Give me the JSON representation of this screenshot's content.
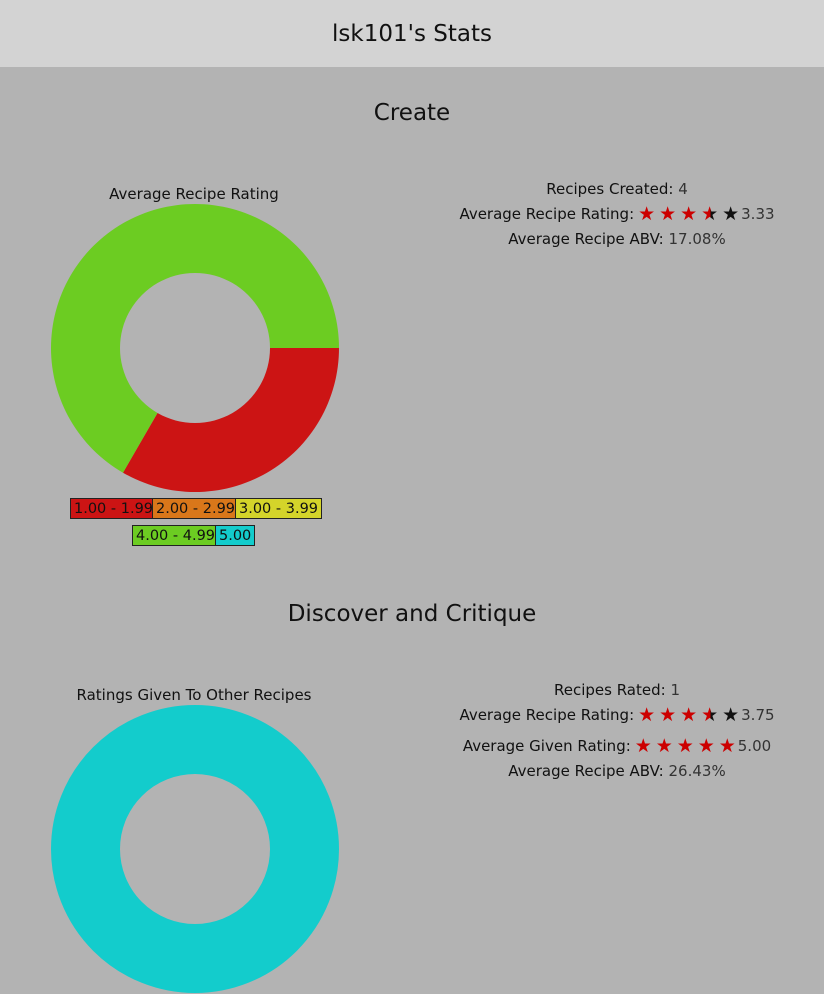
{
  "header": {
    "title": "lsk101's Stats"
  },
  "create": {
    "title": "Create",
    "chart_title": "Average Recipe Rating",
    "stats": {
      "recipes_created_label": "Recipes Created:",
      "recipes_created_value": "4",
      "avg_rating_label": "Average Recipe Rating:",
      "avg_rating_value": "3.33",
      "avg_abv_label": "Average Recipe ABV:",
      "avg_abv_value": "17.08%"
    }
  },
  "critique": {
    "title": "Discover and Critique",
    "chart_title": "Ratings Given To Other Recipes",
    "stats": {
      "recipes_rated_label": "Recipes Rated:",
      "recipes_rated_value": "1",
      "avg_rating_label": "Average Recipe Rating:",
      "avg_rating_value": "3.75",
      "avg_given_label": "Average Given Rating:",
      "avg_given_value": "5.00",
      "avg_abv_label": "Average Recipe ABV:",
      "avg_abv_value": "26.43%"
    }
  },
  "legend": [
    {
      "label": "1.00 - 1.99",
      "color": "#cc1414"
    },
    {
      "label": "2.00 - 2.99",
      "color": "#d9771a"
    },
    {
      "label": "3.00 - 3.99",
      "color": "#d4d42a"
    },
    {
      "label": "4.00 - 4.99",
      "color": "#6ccc22"
    },
    {
      "label": "5.00",
      "color": "#13cccc"
    }
  ],
  "chart_data": [
    {
      "type": "pie",
      "title": "Average Recipe Rating",
      "categories": [
        "1.00 - 1.99",
        "2.00 - 2.99",
        "3.00 - 3.99",
        "4.00 - 4.99",
        "5.00"
      ],
      "values": [
        1,
        0,
        0,
        2,
        0
      ],
      "colors": [
        "#cc1414",
        "#d9771a",
        "#d4d42a",
        "#6ccc22",
        "#13cccc"
      ]
    },
    {
      "type": "pie",
      "title": "Ratings Given To Other Recipes",
      "categories": [
        "1.00 - 1.99",
        "2.00 - 2.99",
        "3.00 - 3.99",
        "4.00 - 4.99",
        "5.00"
      ],
      "values": [
        0,
        0,
        0,
        0,
        1
      ],
      "colors": [
        "#cc1414",
        "#d9771a",
        "#d4d42a",
        "#6ccc22",
        "#13cccc"
      ]
    }
  ]
}
